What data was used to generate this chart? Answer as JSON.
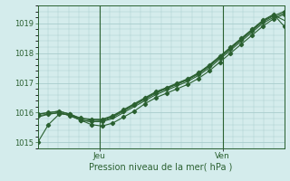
{
  "title": "",
  "xlabel": "Pression niveau de la mer( hPa )",
  "ylim": [
    1014.8,
    1019.6
  ],
  "xlim": [
    0,
    48
  ],
  "yticks": [
    1015,
    1016,
    1017,
    1018,
    1019
  ],
  "xtick_jeu": 12,
  "xtick_ven": 36,
  "bg_color": "#d4ecec",
  "grid_color": "#a8cccc",
  "line_color": "#2a6030",
  "xlabel_color": "#2a6030",
  "tick_color": "#2a6030",
  "series": [
    [
      1015.0,
      1015.6,
      1015.95,
      1015.95,
      1015.75,
      1015.6,
      1015.55,
      1015.65,
      1015.85,
      1016.05,
      1016.3,
      1016.5,
      1016.65,
      1016.8,
      1016.95,
      1017.15,
      1017.4,
      1017.7,
      1018.0,
      1018.3,
      1018.6,
      1018.9,
      1019.15,
      1019.3
    ],
    [
      1015.85,
      1015.95,
      1016.0,
      1015.9,
      1015.75,
      1015.7,
      1015.7,
      1015.8,
      1016.0,
      1016.2,
      1016.4,
      1016.6,
      1016.75,
      1016.9,
      1017.05,
      1017.25,
      1017.5,
      1017.8,
      1018.1,
      1018.4,
      1018.7,
      1019.0,
      1019.2,
      1019.35
    ],
    [
      1015.9,
      1015.95,
      1016.0,
      1015.9,
      1015.75,
      1015.7,
      1015.72,
      1015.85,
      1016.05,
      1016.25,
      1016.45,
      1016.65,
      1016.8,
      1016.95,
      1017.1,
      1017.3,
      1017.55,
      1017.85,
      1018.15,
      1018.45,
      1018.75,
      1019.05,
      1019.25,
      1019.4
    ],
    [
      1015.95,
      1016.0,
      1016.05,
      1015.95,
      1015.8,
      1015.75,
      1015.75,
      1015.88,
      1016.08,
      1016.28,
      1016.48,
      1016.68,
      1016.82,
      1016.97,
      1017.12,
      1017.32,
      1017.58,
      1017.88,
      1018.18,
      1018.48,
      1018.78,
      1019.08,
      1019.28,
      1019.1
    ],
    [
      1015.95,
      1016.0,
      1016.05,
      1015.95,
      1015.82,
      1015.78,
      1015.78,
      1015.9,
      1016.1,
      1016.3,
      1016.5,
      1016.7,
      1016.84,
      1016.99,
      1017.14,
      1017.34,
      1017.6,
      1017.9,
      1018.2,
      1018.5,
      1018.8,
      1019.1,
      1019.3,
      1018.9
    ]
  ],
  "marker_indices": [
    0,
    2,
    4
  ],
  "n_points": 24,
  "figsize": [
    3.2,
    2.0
  ],
  "dpi": 100
}
